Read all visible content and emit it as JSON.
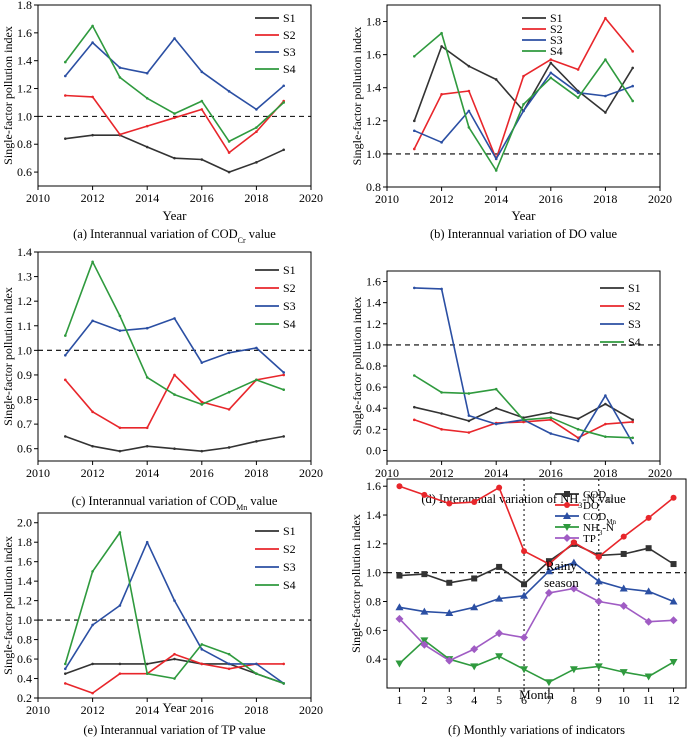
{
  "chart_data": [
    {
      "id": "a",
      "type": "line",
      "caption_pre": "(a) Interannual variation of COD",
      "caption_sub": "Cr",
      "caption_post": " value",
      "xlabel": "Year",
      "ylabel": "Single-factor pollution index",
      "xlim": [
        2010,
        2020
      ],
      "ylim": [
        0.5,
        1.8
      ],
      "xticks": [
        2010,
        2012,
        2014,
        2016,
        2018,
        2020
      ],
      "yticks": [
        0.6,
        0.8,
        1.0,
        1.2,
        1.4,
        1.6,
        1.8
      ],
      "ytick_labels": [
        "0.6",
        "0.8",
        "1.0",
        "1.2",
        "1.4",
        "1.6",
        "1.8"
      ],
      "threshold": 1.0,
      "legend": "top-right",
      "x": [
        2011,
        2012,
        2013,
        2014,
        2015,
        2016,
        2017,
        2018,
        2019
      ],
      "series": [
        {
          "name": "S1",
          "color": "#333333",
          "values": [
            0.84,
            0.865,
            0.865,
            0.78,
            0.7,
            0.69,
            0.6,
            0.67,
            0.76
          ]
        },
        {
          "name": "S2",
          "color": "#e8262b",
          "values": [
            1.15,
            1.14,
            0.87,
            0.93,
            0.99,
            1.05,
            0.74,
            0.89,
            1.11
          ]
        },
        {
          "name": "S3",
          "color": "#2b4fa3",
          "values": [
            1.29,
            1.53,
            1.35,
            1.31,
            1.56,
            1.32,
            1.18,
            1.05,
            1.22
          ]
        },
        {
          "name": "S4",
          "color": "#2f9a3e",
          "values": [
            1.39,
            1.65,
            1.28,
            1.13,
            1.02,
            1.11,
            0.82,
            0.92,
            1.1
          ]
        }
      ]
    },
    {
      "id": "b",
      "type": "line",
      "caption_pre": "(b) Interannual variation of DO value",
      "caption_sub": "",
      "caption_post": "",
      "xlabel": "Year",
      "ylabel": "Single-factor pollution index",
      "xlim": [
        2010,
        2020
      ],
      "ylim": [
        0.8,
        1.9
      ],
      "xticks": [
        2010,
        2012,
        2014,
        2016,
        2018,
        2020
      ],
      "yticks": [
        0.8,
        1.0,
        1.2,
        1.4,
        1.6,
        1.8
      ],
      "ytick_labels": [
        "0.8",
        "1.0",
        "1.2",
        "1.4",
        "1.6",
        "1.8"
      ],
      "threshold": 1.0,
      "legend": "top-left",
      "x": [
        2011,
        2012,
        2013,
        2014,
        2015,
        2016,
        2017,
        2018,
        2019
      ],
      "series": [
        {
          "name": "S1",
          "color": "#333333",
          "values": [
            1.2,
            1.65,
            1.53,
            1.45,
            1.26,
            1.55,
            1.38,
            1.25,
            1.52
          ]
        },
        {
          "name": "S2",
          "color": "#e8262b",
          "values": [
            1.03,
            1.36,
            1.38,
            0.97,
            1.47,
            1.57,
            1.51,
            1.82,
            1.62
          ]
        },
        {
          "name": "S3",
          "color": "#2b4fa3",
          "values": [
            1.14,
            1.07,
            1.26,
            0.97,
            1.26,
            1.49,
            1.37,
            1.35,
            1.41
          ]
        },
        {
          "name": "S4",
          "color": "#2f9a3e",
          "values": [
            1.59,
            1.73,
            1.16,
            0.9,
            1.3,
            1.46,
            1.34,
            1.57,
            1.32
          ]
        }
      ]
    },
    {
      "id": "c",
      "type": "line",
      "caption_pre": "(c) Interannual variation of COD",
      "caption_sub": "Mn",
      "caption_post": " value",
      "xlabel": "",
      "ylabel": "Single-factor pollution index",
      "xlim": [
        2010,
        2020
      ],
      "ylim": [
        0.55,
        1.4
      ],
      "xticks": [
        2010,
        2012,
        2014,
        2016,
        2018,
        2020
      ],
      "yticks": [
        0.6,
        0.7,
        0.8,
        0.9,
        1.0,
        1.1,
        1.2,
        1.3,
        1.4
      ],
      "ytick_labels": [
        "0.6",
        "0.7",
        "0.8",
        "0.9",
        "1.0",
        "1.1",
        "1.2",
        "1.3",
        "1.4"
      ],
      "threshold": 1.0,
      "legend": "top-right",
      "x": [
        2011,
        2012,
        2013,
        2014,
        2015,
        2016,
        2017,
        2018,
        2019
      ],
      "series": [
        {
          "name": "S1",
          "color": "#333333",
          "values": [
            0.65,
            0.61,
            0.59,
            0.61,
            0.6,
            0.59,
            0.605,
            0.63,
            0.65
          ]
        },
        {
          "name": "S2",
          "color": "#e8262b",
          "values": [
            0.88,
            0.75,
            0.685,
            0.685,
            0.9,
            0.79,
            0.76,
            0.88,
            0.9
          ]
        },
        {
          "name": "S3",
          "color": "#2b4fa3",
          "values": [
            0.98,
            1.12,
            1.08,
            1.09,
            1.13,
            0.95,
            0.99,
            1.01,
            0.91
          ]
        },
        {
          "name": "S4",
          "color": "#2f9a3e",
          "values": [
            1.06,
            1.36,
            1.14,
            0.89,
            0.82,
            0.78,
            0.83,
            0.88,
            0.84
          ]
        }
      ]
    },
    {
      "id": "d",
      "type": "line",
      "caption_pre": "(d) Interannual variation of NH",
      "caption_sub": "3",
      "caption_post": "-N value",
      "xlabel": "",
      "ylabel": "Single-factor pollution index",
      "xlim": [
        2010,
        2020
      ],
      "ylim": [
        -0.1,
        1.7
      ],
      "xticks": [
        2010,
        2012,
        2014,
        2016,
        2018,
        2020
      ],
      "yticks": [
        0.0,
        0.2,
        0.4,
        0.6,
        0.8,
        1.0,
        1.2,
        1.4,
        1.6
      ],
      "ytick_labels": [
        "0.0",
        "0.2",
        "0.4",
        "0.6",
        "0.8",
        "1.0",
        "1.2",
        "1.4",
        "1.6"
      ],
      "threshold": 1.0,
      "legend": "top-right",
      "x": [
        2011,
        2012,
        2013,
        2014,
        2015,
        2016,
        2017,
        2018,
        2019
      ],
      "series": [
        {
          "name": "S1",
          "color": "#333333",
          "values": [
            0.41,
            0.35,
            0.28,
            0.4,
            0.31,
            0.36,
            0.3,
            0.44,
            0.29
          ]
        },
        {
          "name": "S2",
          "color": "#e8262b",
          "values": [
            0.29,
            0.2,
            0.17,
            0.26,
            0.27,
            0.29,
            0.12,
            0.25,
            0.27
          ]
        },
        {
          "name": "S3",
          "color": "#2b4fa3",
          "values": [
            1.54,
            1.53,
            0.33,
            0.25,
            0.29,
            0.16,
            0.09,
            0.52,
            0.07
          ]
        },
        {
          "name": "S4",
          "color": "#2f9a3e",
          "values": [
            0.71,
            0.55,
            0.54,
            0.58,
            0.29,
            0.31,
            0.2,
            0.13,
            0.12
          ]
        }
      ]
    },
    {
      "id": "e",
      "type": "line",
      "caption_pre": "(e) Interannual variation of TP value",
      "caption_sub": "",
      "caption_post": "",
      "xlabel": "Year",
      "ylabel": "Single-factor pollution index",
      "xlim": [
        2010,
        2020
      ],
      "ylim": [
        0.2,
        2.1
      ],
      "xticks": [
        2010,
        2012,
        2014,
        2016,
        2018,
        2020
      ],
      "yticks": [
        0.2,
        0.4,
        0.6,
        0.8,
        1.0,
        1.2,
        1.4,
        1.6,
        1.8,
        2.0
      ],
      "ytick_labels": [
        "0.2",
        "0.4",
        "0.6",
        "0.8",
        "1.0",
        "1.2",
        "1.4",
        "1.6",
        "1.8",
        "2.0"
      ],
      "threshold": 1.0,
      "legend": "top-right",
      "x": [
        2011,
        2012,
        2013,
        2014,
        2015,
        2016,
        2017,
        2018,
        2019
      ],
      "series": [
        {
          "name": "S1",
          "color": "#333333",
          "values": [
            0.45,
            0.55,
            0.55,
            0.55,
            0.6,
            0.55,
            0.55,
            0.45,
            0.35
          ]
        },
        {
          "name": "S2",
          "color": "#e8262b",
          "values": [
            0.35,
            0.25,
            0.45,
            0.45,
            0.65,
            0.55,
            0.5,
            0.55,
            0.55
          ]
        },
        {
          "name": "S3",
          "color": "#2b4fa3",
          "values": [
            0.5,
            0.95,
            1.15,
            1.8,
            1.2,
            0.7,
            0.55,
            0.55,
            0.35
          ]
        },
        {
          "name": "S4",
          "color": "#2f9a3e",
          "values": [
            0.55,
            1.5,
            1.9,
            0.45,
            0.4,
            0.75,
            0.65,
            0.45,
            0.35
          ]
        }
      ]
    },
    {
      "id": "f",
      "type": "line",
      "caption_pre": "(f) Monthly variations of indicators",
      "caption_sub": "",
      "caption_post": "",
      "xlabel": "Month",
      "ylabel": "Single-factor pollution index",
      "xlim": [
        0.5,
        12.5
      ],
      "ylim": [
        0.2,
        1.65
      ],
      "xticks": [
        1,
        2,
        3,
        4,
        5,
        6,
        7,
        8,
        9,
        10,
        11,
        12
      ],
      "yticks": [
        0.4,
        0.6,
        0.8,
        1.0,
        1.2,
        1.4,
        1.6
      ],
      "ytick_labels": [
        "0.4",
        "0.6",
        "0.8",
        "1.0",
        "1.2",
        "1.4",
        "1.6"
      ],
      "threshold": 1.0,
      "legend": "top-right",
      "vlines": [
        6,
        9
      ],
      "annotation": [
        "Rainy",
        "season"
      ],
      "x": [
        1,
        2,
        3,
        4,
        5,
        6,
        7,
        8,
        9,
        10,
        11,
        12
      ],
      "series": [
        {
          "name_pre": "COD",
          "name_sub": "Cr",
          "name_post": "",
          "color": "#333333",
          "marker": "square",
          "values": [
            0.98,
            0.99,
            0.93,
            0.96,
            1.04,
            0.92,
            1.08,
            1.2,
            1.12,
            1.13,
            1.17,
            1.06
          ]
        },
        {
          "name_pre": "DO",
          "name_sub": "",
          "name_post": "",
          "color": "#e8262b",
          "marker": "circle",
          "values": [
            1.6,
            1.54,
            1.48,
            1.49,
            1.59,
            1.15,
            1.06,
            1.21,
            1.11,
            1.25,
            1.38,
            1.52
          ]
        },
        {
          "name_pre": "COD",
          "name_sub": "Mn",
          "name_post": "",
          "color": "#2b4fa3",
          "marker": "triangle-up",
          "values": [
            0.76,
            0.73,
            0.72,
            0.76,
            0.82,
            0.84,
            1.01,
            1.07,
            0.94,
            0.89,
            0.87,
            0.8
          ]
        },
        {
          "name_pre": "NH",
          "name_sub": "3",
          "name_post": "-N",
          "color": "#2f9a3e",
          "marker": "triangle-down",
          "values": [
            0.37,
            0.53,
            0.4,
            0.35,
            0.42,
            0.33,
            0.24,
            0.33,
            0.35,
            0.31,
            0.28,
            0.38
          ]
        },
        {
          "name_pre": "TP",
          "name_sub": "",
          "name_post": "",
          "color": "#a05cc4",
          "marker": "diamond",
          "values": [
            0.68,
            0.5,
            0.39,
            0.47,
            0.58,
            0.55,
            0.86,
            0.89,
            0.8,
            0.77,
            0.66,
            0.67
          ]
        }
      ]
    }
  ]
}
